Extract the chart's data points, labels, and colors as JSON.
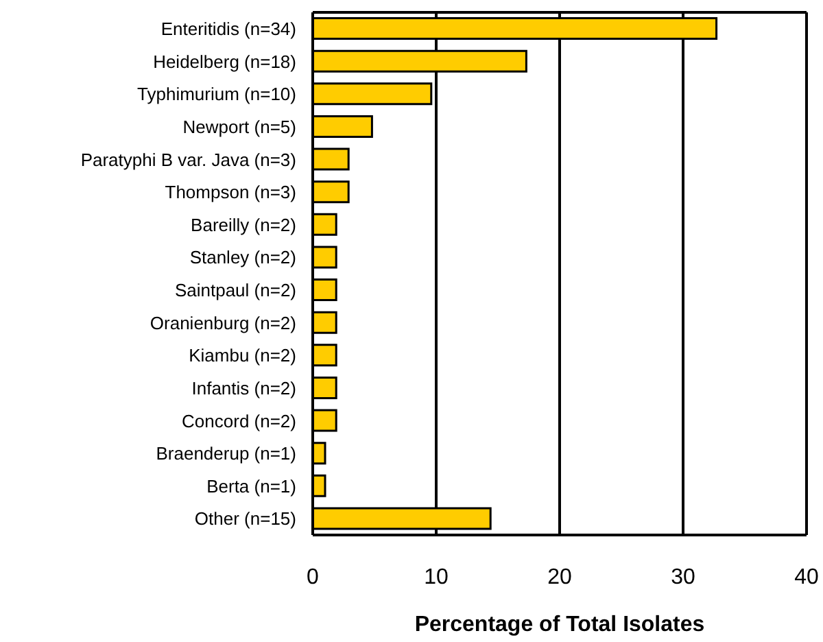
{
  "chart_data": {
    "type": "bar",
    "orientation": "horizontal",
    "xlabel": "Percentage of Total Isolates",
    "categories": [
      "Enteritidis (n=34)",
      "Heidelberg (n=18)",
      "Typhimurium (n=10)",
      "Newport (n=5)",
      "Paratyphi B var. Java (n=3)",
      "Thompson (n=3)",
      "Bareilly (n=2)",
      "Stanley (n=2)",
      "Saintpaul (n=2)",
      "Oranienburg (n=2)",
      "Kiambu (n=2)",
      "Infantis (n=2)",
      "Concord (n=2)",
      "Braenderup (n=1)",
      "Berta (n=1)",
      "Other (n=15)"
    ],
    "values": [
      32.7,
      17.3,
      9.6,
      4.8,
      2.9,
      2.9,
      1.9,
      1.9,
      1.9,
      1.9,
      1.9,
      1.9,
      1.9,
      1.0,
      1.0,
      14.4
    ],
    "color": "#ffcc00",
    "xlim": [
      0,
      40
    ],
    "xticks": [
      0,
      10,
      20,
      30,
      40
    ],
    "grid": "x",
    "legend": false
  }
}
